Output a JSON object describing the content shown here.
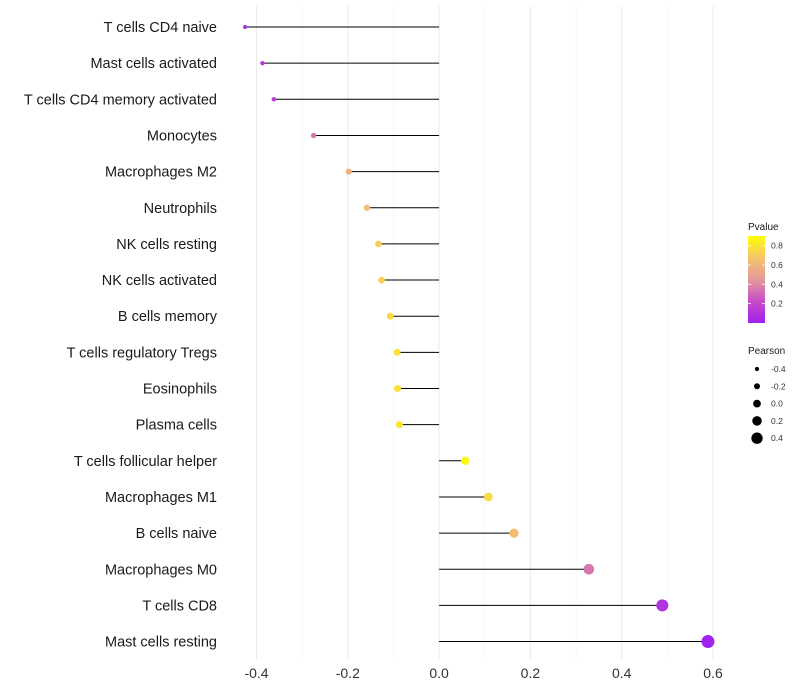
{
  "chart_data": {
    "type": "lollipop",
    "title": "",
    "xlabel": "",
    "ylabel": "",
    "xlim": [
      -0.44,
      0.62
    ],
    "x_ticks": [
      -0.4,
      -0.2,
      0.0,
      0.2,
      0.4,
      0.6
    ],
    "x_tick_labels": [
      "-0.4",
      "-0.2",
      "0.0",
      "0.2",
      "0.4",
      "0.6"
    ],
    "grid": true,
    "categories": [
      "T cells CD4 naive",
      "Mast cells activated",
      "T cells CD4 memory activated",
      "Monocytes",
      "Macrophages M2",
      "Neutrophils",
      "NK cells resting",
      "NK cells activated",
      "B cells memory",
      "T cells regulatory  Tregs ",
      "Eosinophils",
      "Plasma cells",
      "T cells follicular helper",
      "Macrophages M1",
      "B cells naive",
      "Macrophages M0",
      "T cells CD8",
      "Mast cells resting"
    ],
    "pearson": [
      -0.425,
      -0.387,
      -0.362,
      -0.275,
      -0.198,
      -0.158,
      -0.133,
      -0.126,
      -0.107,
      -0.092,
      -0.091,
      -0.087,
      0.057,
      0.108,
      0.164,
      0.328,
      0.489,
      0.589
    ],
    "pvalue": [
      0.07,
      0.12,
      0.14,
      0.34,
      0.57,
      0.66,
      0.71,
      0.72,
      0.76,
      0.79,
      0.79,
      0.8,
      0.87,
      0.76,
      0.64,
      0.35,
      0.1,
      0.01
    ],
    "color_legend": {
      "title": "Pvalue",
      "ticks": [
        0.2,
        0.4,
        0.6,
        0.8
      ],
      "tick_labels": [
        "0.2",
        "0.4",
        "0.6",
        "0.8"
      ],
      "range": [
        0.0,
        0.9
      ],
      "gradient": [
        "#A020F0",
        "#C84CC8",
        "#E49A9A",
        "#F4C46C",
        "#FFFF00"
      ]
    },
    "size_legend": {
      "title": "Pearson",
      "values": [
        -0.4,
        -0.2,
        0.0,
        0.2,
        0.4
      ],
      "labels": [
        "-0.4",
        "-0.2",
        "0.0",
        "0.2",
        "0.4"
      ]
    },
    "colors": {
      "segment": "#000000",
      "grid_major": "#ebebeb",
      "grid_minor": "#f4f4f4"
    }
  }
}
